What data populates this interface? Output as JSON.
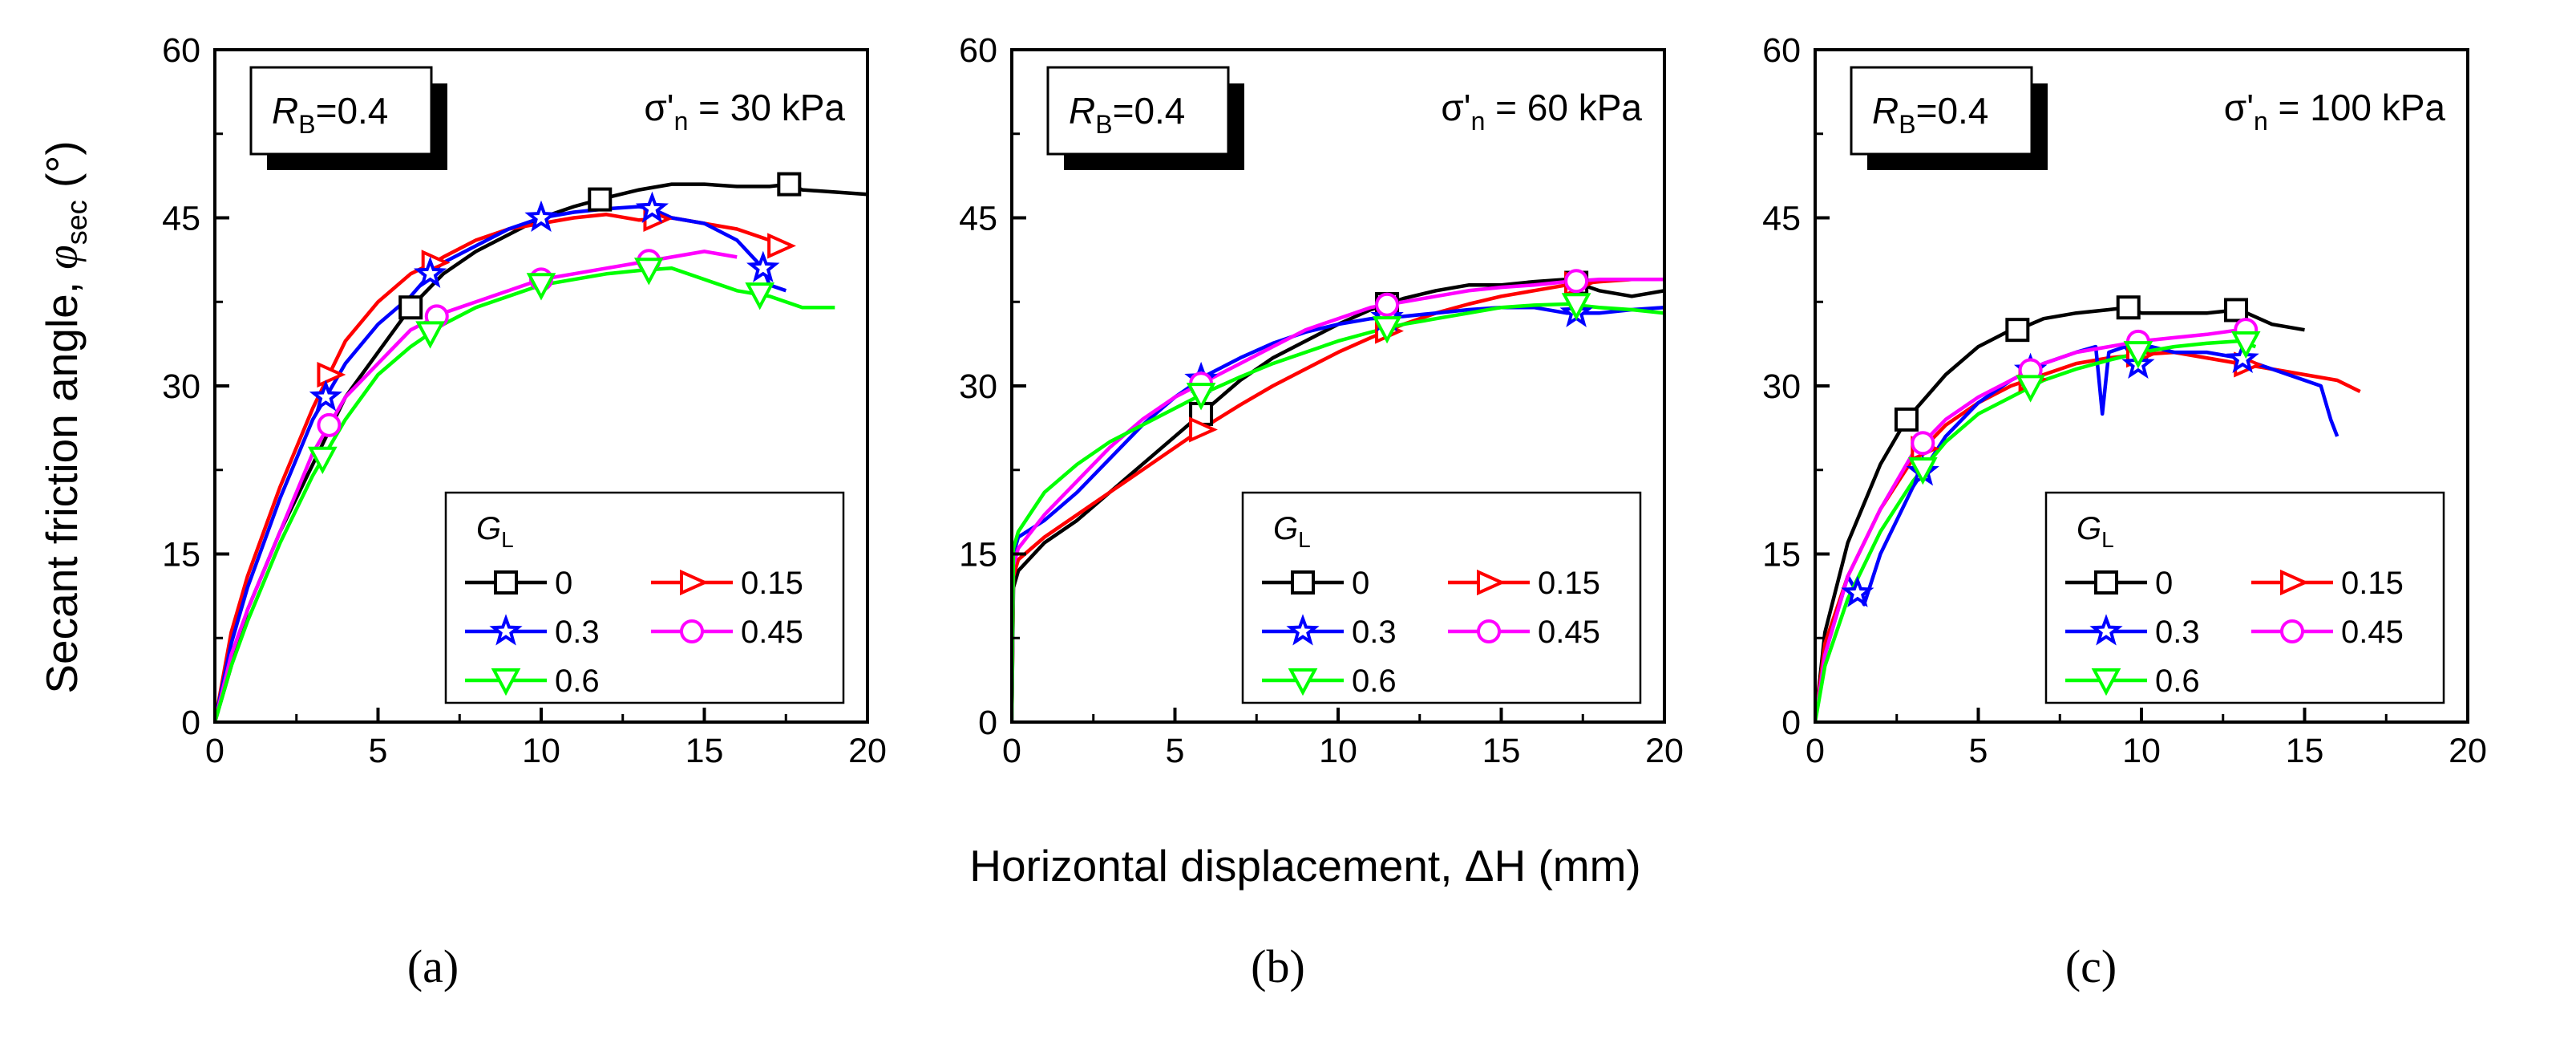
{
  "figure": {
    "y_axis_title": "Secant friction angle, ",
    "y_axis_symbol": "φ",
    "y_axis_symbol_sub": "sec",
    "y_axis_unit": " (°)",
    "x_axis_title": "Horizontal displacement, ΔH (mm)"
  },
  "legend": {
    "title": "G",
    "title_sub": "L"
  },
  "series_styles": [
    {
      "name": "0",
      "color": "#000000",
      "marker": "square"
    },
    {
      "name": "0.15",
      "color": "#ff0000",
      "marker": "triangle-right"
    },
    {
      "name": "0.3",
      "color": "#0000ff",
      "marker": "star"
    },
    {
      "name": "0.45",
      "color": "#ff00ff",
      "marker": "circle"
    },
    {
      "name": "0.6",
      "color": "#00ff00",
      "marker": "triangle-down"
    }
  ],
  "chart_data": [
    {
      "type": "line",
      "panel_label": "(a)",
      "rb_label": "R",
      "rb_sub": "B",
      "rb_value": "=0.4",
      "stress_label": "σ'",
      "stress_sub": "n",
      "stress_value": " = 30 kPa",
      "xlim": [
        0,
        20
      ],
      "ylim": [
        0,
        60
      ],
      "x_ticks": [
        0,
        5,
        10,
        15,
        20
      ],
      "y_ticks": [
        0,
        15,
        30,
        45,
        60
      ],
      "series": [
        {
          "name": "0",
          "x": [
            0,
            0.5,
            1,
            2,
            3,
            4,
            5,
            6,
            7,
            8,
            9,
            10,
            11,
            12,
            13,
            14,
            15,
            16,
            17,
            17.6,
            18,
            19,
            20
          ],
          "y": [
            0,
            5,
            10,
            17,
            23,
            29,
            33,
            37,
            40,
            42,
            43.5,
            45,
            46,
            46.8,
            47.5,
            48,
            48,
            47.8,
            47.8,
            48,
            47.5,
            47.3,
            47.1
          ],
          "markers_x": [
            6,
            11.8,
            17.6
          ]
        },
        {
          "name": "0.15",
          "x": [
            0,
            0.5,
            1,
            2,
            3,
            3.5,
            4,
            5,
            6,
            6.7,
            7,
            8,
            9,
            10,
            11,
            12,
            13,
            14,
            15,
            16,
            17,
            17.3
          ],
          "y": [
            0,
            8,
            13,
            21,
            28,
            31,
            34,
            37.5,
            40,
            41,
            41.5,
            43,
            44,
            44.5,
            45,
            45.3,
            44.8,
            45,
            44.5,
            44,
            43,
            42.5
          ],
          "markers_x": [
            3.5,
            6.7,
            13.5,
            17.3
          ]
        },
        {
          "name": "0.3",
          "x": [
            0,
            0.5,
            1,
            2,
            3,
            3.4,
            4,
            5,
            6,
            6.6,
            7,
            8,
            9,
            10,
            11,
            12,
            13,
            13.4,
            14,
            15,
            16,
            16.8,
            17,
            17.5
          ],
          "y": [
            0,
            7,
            12,
            20,
            27,
            29,
            32,
            35.5,
            38,
            40,
            41,
            42.5,
            44,
            45,
            45.5,
            45.8,
            46,
            45.8,
            45,
            44.5,
            43,
            40.5,
            39,
            38.5
          ],
          "markers_x": [
            3.4,
            6.6,
            10,
            13.4,
            16.8
          ]
        },
        {
          "name": "0.45",
          "x": [
            0,
            0.5,
            1,
            2,
            3,
            4,
            5,
            6,
            7,
            8,
            9,
            10,
            11,
            12,
            13,
            14,
            15,
            16
          ],
          "y": [
            0,
            6,
            10,
            17,
            24,
            29,
            32,
            35,
            36.5,
            37.5,
            38.5,
            39.5,
            40,
            40.5,
            41,
            41.5,
            42,
            41.5
          ],
          "markers_x": [
            3.5,
            6.8,
            10,
            13.3
          ]
        },
        {
          "name": "0.6",
          "x": [
            0,
            0.5,
            1,
            2,
            3,
            4,
            5,
            6,
            7,
            8,
            9,
            10,
            11,
            12,
            13,
            14,
            15,
            16,
            17,
            18,
            19
          ],
          "y": [
            0,
            5,
            9,
            16,
            22,
            27,
            31,
            33.5,
            35.5,
            37,
            38,
            39,
            39.5,
            40,
            40.3,
            40.5,
            39.5,
            38.5,
            38,
            37,
            37
          ],
          "markers_x": [
            3.3,
            6.6,
            10,
            13.3,
            16.7
          ]
        }
      ]
    },
    {
      "type": "line",
      "panel_label": "(b)",
      "rb_label": "R",
      "rb_sub": "B",
      "rb_value": "=0.4",
      "stress_label": "σ'",
      "stress_sub": "n",
      "stress_value": " = 60 kPa",
      "xlim": [
        0,
        20
      ],
      "ylim": [
        0,
        60
      ],
      "x_ticks": [
        0,
        5,
        10,
        15,
        20
      ],
      "y_ticks": [
        0,
        15,
        30,
        45,
        60
      ],
      "series": [
        {
          "name": "0",
          "x": [
            0,
            0.05,
            0.2,
            1,
            2,
            3,
            4,
            5,
            6,
            7,
            8,
            9,
            10,
            11,
            12,
            13,
            14,
            15,
            16,
            17,
            18,
            19,
            20
          ],
          "y": [
            0,
            12,
            13.5,
            16,
            18,
            20.5,
            23,
            25.5,
            28,
            30.5,
            32.5,
            34,
            35.5,
            36.8,
            37.8,
            38.5,
            39,
            39,
            39.3,
            39.5,
            38.5,
            38,
            38.5
          ],
          "markers_x": [
            5.8,
            11.5,
            17.3
          ]
        },
        {
          "name": "0.15",
          "x": [
            0,
            0.05,
            0.2,
            1,
            2,
            3,
            4,
            5,
            6,
            7,
            8,
            9,
            10,
            11,
            12,
            13,
            14,
            15,
            16,
            17,
            18,
            19,
            20
          ],
          "y": [
            0,
            13,
            14.5,
            16.5,
            18.5,
            20.5,
            22.5,
            24.5,
            26.5,
            28.3,
            30,
            31.5,
            33,
            34.3,
            35.5,
            36.5,
            37.3,
            38,
            38.5,
            39,
            39.3,
            39.5,
            39.5
          ],
          "markers_x": [
            5.8,
            11.5,
            17.3
          ]
        },
        {
          "name": "0.3",
          "x": [
            0,
            0.05,
            0.2,
            1,
            2,
            3,
            4,
            5,
            6,
            7,
            8,
            9,
            10,
            11,
            12,
            13,
            14,
            15,
            16,
            17,
            18,
            19,
            20
          ],
          "y": [
            0,
            15,
            16.5,
            18,
            20.5,
            23.5,
            26.5,
            29,
            31,
            32.5,
            33.8,
            34.8,
            35.5,
            36,
            36.2,
            36.5,
            36.8,
            37,
            37,
            36.5,
            36.5,
            36.8,
            37
          ],
          "markers_x": [
            5.8,
            11.5,
            17.3
          ]
        },
        {
          "name": "0.45",
          "x": [
            0,
            0.05,
            0.2,
            1,
            2,
            3,
            4,
            5,
            6,
            7,
            8,
            9,
            10,
            11,
            12,
            13,
            14,
            15,
            16,
            17,
            18,
            19,
            20
          ],
          "y": [
            0,
            14,
            15.5,
            18.5,
            21.5,
            24.5,
            27,
            29,
            30.5,
            32,
            33.5,
            35,
            36,
            37,
            37.5,
            38,
            38.5,
            38.8,
            39,
            39.3,
            39.5,
            39.5,
            39.5
          ],
          "markers_x": [
            5.8,
            11.5,
            17.3
          ]
        },
        {
          "name": "0.6",
          "x": [
            0,
            0.05,
            0.2,
            1,
            2,
            3,
            4,
            5,
            6,
            7,
            8,
            9,
            10,
            11,
            12,
            13,
            14,
            15,
            16,
            17,
            18,
            19,
            20
          ],
          "y": [
            0,
            15.5,
            17,
            20.5,
            23,
            25,
            26.5,
            28,
            29.5,
            30.8,
            32,
            33,
            34,
            34.8,
            35.5,
            36,
            36.5,
            37,
            37.2,
            37.3,
            37,
            36.8,
            36.5
          ],
          "markers_x": [
            5.8,
            11.5,
            17.3
          ]
        }
      ]
    },
    {
      "type": "line",
      "panel_label": "(c)",
      "rb_label": "R",
      "rb_sub": "B",
      "rb_value": "=0.4",
      "stress_label": "σ'",
      "stress_sub": "n",
      "stress_value": " = 100 kPa",
      "xlim": [
        0,
        20
      ],
      "ylim": [
        0,
        60
      ],
      "x_ticks": [
        0,
        5,
        10,
        15,
        20
      ],
      "y_ticks": [
        0,
        15,
        30,
        45,
        60
      ],
      "series": [
        {
          "name": "0",
          "x": [
            0,
            0.3,
            1,
            2,
            2.8,
            4,
            5,
            6,
            6.2,
            7,
            8,
            9,
            9.6,
            10,
            11,
            12,
            13,
            14,
            15
          ],
          "y": [
            0,
            8,
            16,
            23,
            27,
            31,
            33.5,
            35,
            35,
            36,
            36.5,
            36.8,
            37,
            36.5,
            36.5,
            36.5,
            36.8,
            35.5,
            35
          ],
          "markers_x": [
            2.8,
            6.2,
            9.6,
            12.9
          ]
        },
        {
          "name": "0.15",
          "x": [
            0,
            0.3,
            1,
            2,
            3,
            4,
            5,
            6,
            7,
            8,
            9,
            10,
            11,
            12,
            13,
            14,
            15,
            16,
            16.7
          ],
          "y": [
            0,
            7,
            13,
            19,
            23.5,
            26.5,
            28.5,
            30,
            31,
            32,
            32.5,
            32.8,
            33,
            32.5,
            32,
            31.5,
            31,
            30.5,
            29.5
          ],
          "markers_x": [
            3.3,
            6.6,
            9.9,
            13.2
          ]
        },
        {
          "name": "0.3",
          "x": [
            0,
            0.3,
            0.8,
            1,
            1.5,
            2,
            3,
            4,
            5,
            6,
            7,
            8,
            8.6,
            8.8,
            9,
            9.5,
            10,
            10.3,
            11,
            12,
            13,
            14,
            15,
            15.5,
            15.8,
            16
          ],
          "y": [
            0,
            6,
            11,
            13,
            10.5,
            15,
            21,
            25.5,
            28.5,
            30.5,
            32,
            33,
            33.5,
            27.5,
            33,
            33.5,
            31.5,
            33.5,
            33,
            33,
            32.5,
            31.5,
            30.5,
            30,
            27,
            25.5
          ],
          "markers_x": [
            1.3,
            3.3,
            6.6,
            9.9,
            13.1
          ]
        },
        {
          "name": "0.45",
          "x": [
            0,
            0.3,
            1,
            2,
            3,
            4,
            5,
            6,
            7,
            8,
            9,
            10,
            11,
            12,
            13,
            13.4
          ],
          "y": [
            0,
            6,
            13,
            19,
            24,
            27,
            29,
            30.5,
            32,
            33,
            33.5,
            34,
            34.3,
            34.6,
            35,
            35
          ],
          "markers_x": [
            3.3,
            6.6,
            9.9,
            13.2
          ]
        },
        {
          "name": "0.6",
          "x": [
            0,
            0.3,
            1,
            2,
            3,
            4,
            5,
            6,
            7,
            8,
            9,
            10,
            11,
            12,
            13,
            13.5
          ],
          "y": [
            0,
            5,
            11,
            17,
            21.5,
            25,
            27.5,
            29,
            30.5,
            31.5,
            32.3,
            33,
            33.5,
            33.8,
            34,
            33.5
          ],
          "markers_x": [
            3.3,
            6.6,
            9.9,
            13.2
          ]
        }
      ]
    }
  ]
}
